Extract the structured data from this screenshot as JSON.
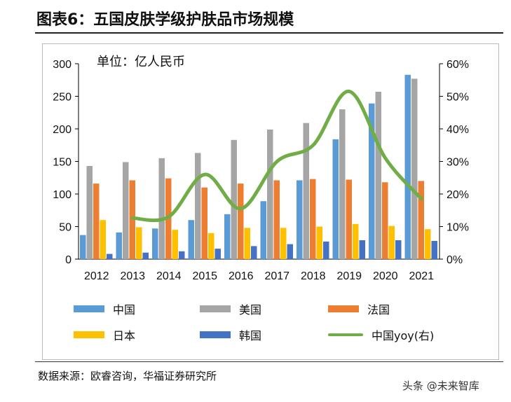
{
  "title": "图表6：五国皮肤学级护肤品市场规模",
  "source": "数据来源：欧睿咨询，华福证券研究所",
  "watermark": "头条 @未来智库",
  "chart_data": {
    "type": "bar",
    "unit_label": "单位：亿人民币",
    "categories": [
      "2012",
      "2013",
      "2014",
      "2015",
      "2016",
      "2017",
      "2018",
      "2019",
      "2020",
      "2021"
    ],
    "ylim": [
      0,
      300
    ],
    "yticks": [
      "0",
      "50",
      "100",
      "150",
      "200",
      "250",
      "300"
    ],
    "y2lim": [
      0,
      60
    ],
    "y2ticks": [
      "0%",
      "10%",
      "20%",
      "30%",
      "40%",
      "50%",
      "60%"
    ],
    "legend_position": "bottom",
    "series": [
      {
        "name": "中国",
        "color": "#5B9BD5",
        "values": [
          37,
          41,
          47,
          60,
          69,
          89,
          121,
          184,
          239,
          283
        ]
      },
      {
        "name": "美国",
        "color": "#A5A5A5",
        "values": [
          143,
          149,
          155,
          163,
          183,
          199,
          209,
          230,
          257,
          277
        ]
      },
      {
        "name": "法国",
        "color": "#ED7D31",
        "values": [
          116,
          121,
          124,
          110,
          116,
          121,
          123,
          122,
          118,
          120
        ]
      },
      {
        "name": "日本",
        "color": "#FFC000",
        "values": [
          60,
          49,
          45,
          40,
          48,
          48,
          50,
          54,
          51,
          46
        ]
      },
      {
        "name": "韩国",
        "color": "#4472C4",
        "values": [
          8,
          10,
          12,
          16,
          20,
          23,
          27,
          29,
          29,
          28
        ]
      }
    ],
    "line": {
      "name": "中国yoy(右)",
      "color": "#70AD47",
      "values": [
        null,
        12.6,
        13,
        26,
        15.5,
        30,
        35,
        51.5,
        31,
        18.5
      ]
    }
  }
}
